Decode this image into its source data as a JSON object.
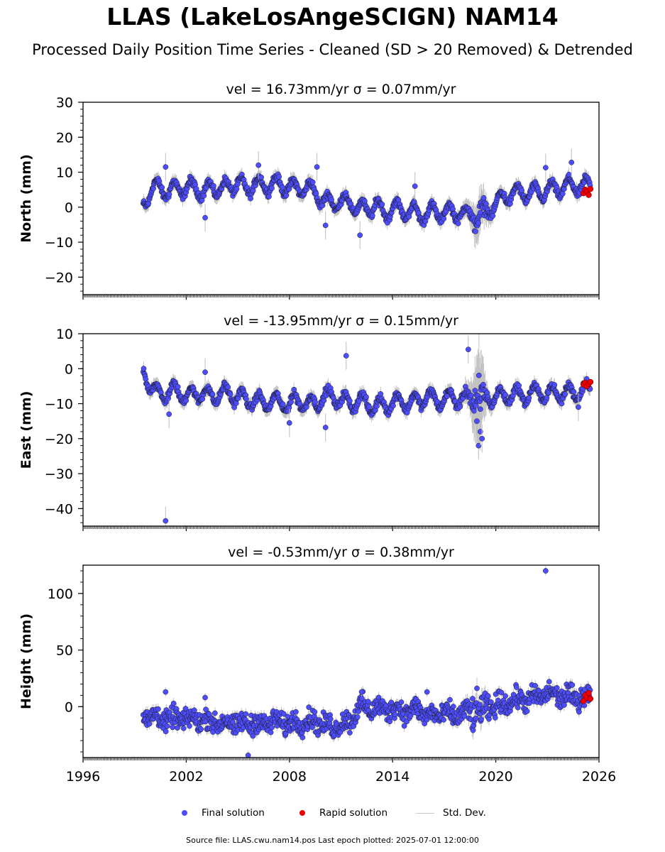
{
  "title": "LLAS (LakeLosAngeSCIGN) NAM14",
  "subtitle": "Processed Daily Position Time Series - Cleaned (SD > 20 Removed) & Detrended",
  "legend": {
    "final": "Final solution",
    "rapid": "Rapid solution",
    "std": "Std. Dev."
  },
  "footer": "Source file: LLAS.cwu.nam14.pos  Last epoch plotted: 2025-07-01 12:00:00",
  "colors": {
    "final": "#4d4dff",
    "rapid": "#ee0000",
    "std": "#bdbdbd",
    "edge": "#1a1a1a"
  },
  "chart_data": [
    {
      "type": "scatter",
      "panel_title": "vel = 16.73mm/yr   σ = 0.07mm/yr",
      "ylabel": "North (mm)",
      "xlim": [
        1996,
        2026
      ],
      "ylim": [
        -25,
        30
      ],
      "yticks": [
        -20,
        -10,
        0,
        10,
        20,
        30
      ],
      "ytick_labels": [
        "−20",
        "−10",
        "0",
        "10",
        "20",
        "30"
      ],
      "x": [
        1999.5,
        2000,
        2000.5,
        2001,
        2001.5,
        2002,
        2002.5,
        2003,
        2003.5,
        2004,
        2004.5,
        2005,
        2005.5,
        2006,
        2006.5,
        2007,
        2007.5,
        2008,
        2008.5,
        2009,
        2009.5,
        2010,
        2010.5,
        2011,
        2011.5,
        2012,
        2012.5,
        2013,
        2013.5,
        2014,
        2014.5,
        2015,
        2015.5,
        2016,
        2016.5,
        2017,
        2017.5,
        2018,
        2018.5,
        2019,
        2019.5,
        2020,
        2020.5,
        2021,
        2021.5,
        2022,
        2022.5,
        2023,
        2023.5,
        2024,
        2024.5,
        2025
      ],
      "y": [
        1,
        5,
        6,
        4,
        6,
        5,
        6,
        4,
        6,
        5,
        6,
        7,
        5,
        7,
        6,
        7,
        6,
        6,
        5,
        6,
        4,
        2,
        1,
        2,
        1,
        0,
        -1,
        1,
        -2,
        0,
        -1,
        -1,
        -2,
        -2,
        -1,
        -2,
        -1,
        -2,
        -2,
        -3,
        -1,
        1,
        3,
        4,
        4,
        4,
        4,
        5,
        5,
        6,
        6,
        6
      ],
      "std_dev": [
        2,
        2,
        2,
        2,
        2,
        2,
        2,
        2,
        2,
        2,
        2,
        2,
        2,
        2,
        2,
        2,
        2,
        2,
        2,
        2,
        2,
        2,
        2,
        2,
        2,
        2,
        2,
        2,
        2,
        2,
        2,
        2,
        2,
        2,
        2,
        2,
        2,
        2,
        3,
        6,
        3,
        2,
        2,
        2,
        2,
        2,
        2,
        2,
        2,
        2,
        2,
        2
      ],
      "outliers": [
        [
          2000.8,
          11.5
        ],
        [
          2003.1,
          -3
        ],
        [
          2006.2,
          12
        ],
        [
          2009.6,
          11.5
        ],
        [
          2010.1,
          -5.2
        ],
        [
          2012.1,
          -8
        ],
        [
          2015.3,
          6
        ],
        [
          2022.9,
          11.3
        ],
        [
          2024.4,
          12.8
        ]
      ],
      "rapid_x": [
        2025.1,
        2025.2,
        2025.3,
        2025.4,
        2025.5
      ],
      "rapid_y": [
        4.0,
        5.0,
        4.5,
        3.5,
        5.2
      ]
    },
    {
      "type": "scatter",
      "panel_title": "vel = -13.95mm/yr   σ = 0.15mm/yr",
      "ylabel": "East (mm)",
      "xlim": [
        1996,
        2026
      ],
      "ylim": [
        -45,
        10
      ],
      "yticks": [
        -40,
        -30,
        -20,
        -10,
        0,
        10
      ],
      "ytick_labels": [
        "−40",
        "−30",
        "−20",
        "−10",
        "0",
        "10"
      ],
      "x": [
        1999.5,
        2000,
        2000.5,
        2001,
        2001.5,
        2002,
        2002.5,
        2003,
        2003.5,
        2004,
        2004.5,
        2005,
        2005.5,
        2006,
        2006.5,
        2007,
        2007.5,
        2008,
        2008.5,
        2009,
        2009.5,
        2010,
        2010.5,
        2011,
        2011.5,
        2012,
        2012.5,
        2013,
        2013.5,
        2014,
        2014.5,
        2015,
        2015.5,
        2016,
        2016.5,
        2017,
        2017.5,
        2018,
        2018.5,
        2019,
        2019.5,
        2020,
        2020.5,
        2021,
        2021.5,
        2022,
        2022.5,
        2023,
        2023.5,
        2024,
        2024.5,
        2025
      ],
      "y": [
        0,
        -6,
        -7,
        -7,
        -6,
        -8,
        -7,
        -7,
        -8,
        -7,
        -7,
        -8,
        -9,
        -9,
        -10,
        -9,
        -10,
        -10,
        -9,
        -10,
        -10,
        -8,
        -8,
        -9,
        -10,
        -9,
        -10,
        -11,
        -10,
        -10,
        -9,
        -10,
        -9,
        -8,
        -9,
        -9,
        -8,
        -9,
        -8,
        -10,
        -8,
        -8,
        -8,
        -7,
        -8,
        -7,
        -7,
        -7,
        -7,
        -7,
        -7,
        -6
      ],
      "std_dev": [
        2,
        2,
        2,
        2,
        2,
        2,
        2,
        2,
        2,
        2,
        2,
        2,
        2,
        2,
        2,
        2,
        2,
        2,
        2,
        2,
        2,
        2,
        2,
        2,
        2,
        2,
        2,
        2,
        2,
        2,
        2,
        2,
        2,
        2,
        2,
        2,
        2,
        2,
        4,
        14,
        3,
        2,
        2,
        2,
        2,
        2,
        2,
        2,
        2,
        2,
        2,
        2
      ],
      "outliers": [
        [
          2000.8,
          -43.5
        ],
        [
          2001,
          -13
        ],
        [
          2003.1,
          -1
        ],
        [
          2011.3,
          3.7
        ],
        [
          2018.4,
          5.5
        ],
        [
          2008,
          -15.5
        ],
        [
          2010.1,
          -16.8
        ],
        [
          2019.0,
          -22
        ],
        [
          2019.1,
          -18
        ],
        [
          2018.9,
          -15
        ],
        [
          2019.2,
          -20
        ],
        [
          2024.8,
          -11
        ]
      ],
      "rapid_x": [
        2025.1,
        2025.2,
        2025.3,
        2025.4,
        2025.5
      ],
      "rapid_y": [
        -4.5,
        -4.0,
        -5.0,
        -4.3,
        -3.8
      ]
    },
    {
      "type": "scatter",
      "panel_title": "vel = -0.53mm/yr   σ = 0.38mm/yr",
      "ylabel": "Height (mm)",
      "xlim": [
        1996,
        2026
      ],
      "ylim": [
        -45,
        125
      ],
      "yticks": [
        0,
        50,
        100
      ],
      "ytick_labels": [
        "0",
        "50",
        "100"
      ],
      "xticks": [
        1996,
        2002,
        2008,
        2014,
        2020,
        2026
      ],
      "xtick_labels": [
        "1996",
        "2002",
        "2008",
        "2014",
        "2020",
        "2026"
      ],
      "x": [
        1999.5,
        2000,
        2000.5,
        2001,
        2001.5,
        2002,
        2002.5,
        2003,
        2003.5,
        2004,
        2004.5,
        2005,
        2005.5,
        2006,
        2006.5,
        2007,
        2007.5,
        2008,
        2008.5,
        2009,
        2009.5,
        2010,
        2010.5,
        2011,
        2011.5,
        2012,
        2012.5,
        2013,
        2013.5,
        2014,
        2014.5,
        2015,
        2015.5,
        2016,
        2016.5,
        2017,
        2017.5,
        2018,
        2018.5,
        2019,
        2019.5,
        2020,
        2020.5,
        2021,
        2021.5,
        2022,
        2022.5,
        2023,
        2023.5,
        2024,
        2024.5,
        2025
      ],
      "y": [
        -10,
        -8,
        -10,
        -12,
        -10,
        -12,
        -11,
        -12,
        -13,
        -15,
        -14,
        -16,
        -15,
        -14,
        -16,
        -13,
        -14,
        -15,
        -14,
        -13,
        -13,
        -16,
        -18,
        -15,
        -14,
        0,
        -2,
        -1,
        -3,
        -2,
        -3,
        -4,
        -2,
        -8,
        -7,
        -6,
        -8,
        -6,
        -5,
        -4,
        -2,
        1,
        3,
        5,
        6,
        7,
        8,
        12,
        10,
        9,
        8,
        9
      ],
      "std_dev": [
        5,
        5,
        5,
        5,
        5,
        5,
        5,
        5,
        5,
        5,
        5,
        5,
        5,
        5,
        5,
        5,
        5,
        5,
        5,
        5,
        5,
        5,
        5,
        5,
        5,
        5,
        5,
        5,
        5,
        5,
        5,
        5,
        5,
        5,
        5,
        5,
        5,
        5,
        7,
        10,
        6,
        5,
        5,
        5,
        5,
        5,
        5,
        5,
        5,
        5,
        5,
        5
      ],
      "outliers": [
        [
          2022.9,
          120
        ],
        [
          2005.6,
          -43
        ],
        [
          2000.8,
          13
        ],
        [
          2003.1,
          8
        ],
        [
          2012.2,
          13
        ],
        [
          2016,
          13
        ]
      ],
      "rapid_x": [
        2025.1,
        2025.2,
        2025.3,
        2025.4,
        2025.5
      ],
      "rapid_y": [
        5,
        10,
        8,
        12,
        7
      ]
    }
  ]
}
